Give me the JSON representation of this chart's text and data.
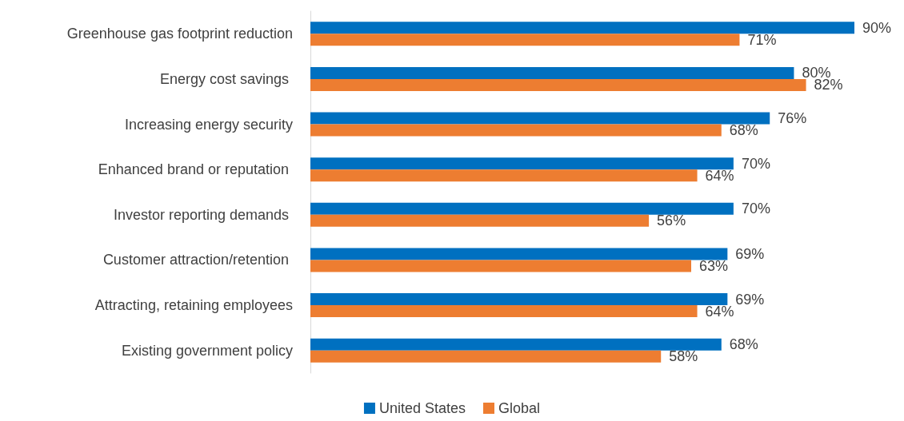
{
  "chart_data": {
    "type": "bar",
    "orientation": "horizontal",
    "categories": [
      "Greenhouse gas footprint reduction",
      "Energy cost savings ",
      "Increasing energy security",
      "Enhanced brand or reputation ",
      "Investor reporting demands ",
      "Customer attraction/retention ",
      "Attracting, retaining employees",
      "Existing government policy"
    ],
    "series": [
      {
        "name": "United States",
        "color": "#0070c0",
        "values": [
          90,
          80,
          76,
          70,
          70,
          69,
          69,
          68
        ],
        "value_labels": [
          "90%",
          "80%",
          "76%",
          "70%",
          "70%",
          "69%",
          "69%",
          "68%"
        ]
      },
      {
        "name": "Global",
        "color": "#ed7d31",
        "values": [
          71,
          82,
          68,
          64,
          56,
          63,
          64,
          58
        ],
        "value_labels": [
          "71%",
          "82%",
          "68%",
          "64%",
          "56%",
          "63%",
          "64%",
          "58%"
        ]
      }
    ],
    "legend": "bottom",
    "grid": false
  }
}
